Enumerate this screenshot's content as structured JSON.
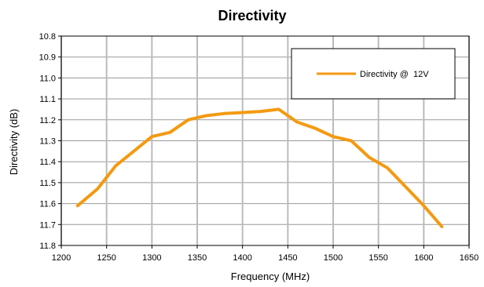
{
  "chart_data": {
    "type": "line",
    "title": "Directivity",
    "xlabel": "Frequency (MHz)",
    "ylabel": "Directivity (dB)",
    "xlim": [
      1200,
      1650
    ],
    "ylim": [
      10.8,
      11.8
    ],
    "y_inverted": true,
    "x_ticks": [
      1200,
      1250,
      1300,
      1350,
      1400,
      1450,
      1500,
      1550,
      1600,
      1650
    ],
    "y_ticks": [
      "10.8",
      "10.9",
      "11.0",
      "11.1",
      "11.2",
      "11.3",
      "11.4",
      "11.5",
      "11.6",
      "11.7",
      "11.8"
    ],
    "grid": {
      "vertical": true,
      "horizontal": true
    },
    "legend_position": "top-right",
    "series": [
      {
        "name": "Directivity @  12V",
        "color": "#f39a12",
        "x": [
          1218,
          1240,
          1260,
          1280,
          1300,
          1320,
          1340,
          1360,
          1380,
          1400,
          1420,
          1440,
          1460,
          1480,
          1500,
          1520,
          1540,
          1560,
          1580,
          1600,
          1620
        ],
        "y": [
          11.61,
          11.53,
          11.42,
          11.35,
          11.28,
          11.26,
          11.2,
          11.18,
          11.17,
          11.165,
          11.16,
          11.15,
          11.21,
          11.24,
          11.28,
          11.3,
          11.38,
          11.43,
          11.52,
          11.61,
          11.71
        ]
      }
    ]
  }
}
